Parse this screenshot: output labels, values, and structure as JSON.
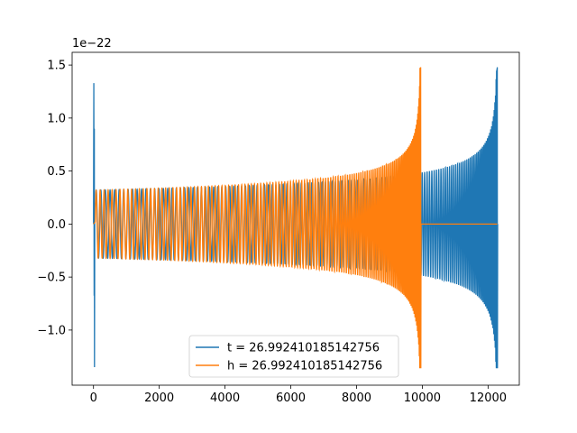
{
  "chart_data": {
    "type": "line",
    "title": "",
    "xlabel": "",
    "ylabel": "",
    "y_offset_label": "1e−22",
    "xlim": [
      -650,
      12950
    ],
    "ylim": [
      -1.52,
      1.62
    ],
    "y_scale_factor": 1e-22,
    "grid": false,
    "legend_placement": "lower center",
    "x_ticks": [
      {
        "value": 0,
        "label": "0"
      },
      {
        "value": 2000,
        "label": "2000"
      },
      {
        "value": 4000,
        "label": "4000"
      },
      {
        "value": 6000,
        "label": "6000"
      },
      {
        "value": 8000,
        "label": "8000"
      },
      {
        "value": 10000,
        "label": "10000"
      },
      {
        "value": 12000,
        "label": "12000"
      }
    ],
    "y_ticks": [
      {
        "value": 1.5,
        "label": "1.5"
      },
      {
        "value": 1.0,
        "label": "1.0"
      },
      {
        "value": 0.5,
        "label": "0.5"
      },
      {
        "value": 0.0,
        "label": "0.0"
      },
      {
        "value": -0.5,
        "label": "−0.5"
      },
      {
        "value": -1.0,
        "label": "−1.0"
      }
    ],
    "series": [
      {
        "name": "t = 26.992410185142756",
        "color": "#1f77b4",
        "description": "chirp oscillation: spike at x~0 reaching about ±1.35, then oscillation with amplitude growing from ~0.32 to ~1.48 near x~12280",
        "x_start": 0,
        "x_end": 12280,
        "start_spike_max": 1.33,
        "start_spike_min": -1.35,
        "amp_start": 0.32,
        "amp_end_max": 1.48,
        "amp_end_min": -1.36
      },
      {
        "name": "h = 26.992410185142756",
        "color": "#ff7f0e",
        "description": "chirp oscillation from x~0 to x~9950 with amplitude growing from ~0.32 to ~1.48, flat zero before start and after merger to x~12280",
        "x_start": 0,
        "x_end": 9950,
        "flat_until": 12280,
        "amp_start": 0.32,
        "amp_end_max": 1.48,
        "amp_end_min": -1.36
      }
    ],
    "legend": [
      {
        "label": "t = 26.992410185142756",
        "color": "#1f77b4"
      },
      {
        "label": "h = 26.992410185142756",
        "color": "#ff7f0e"
      }
    ]
  }
}
